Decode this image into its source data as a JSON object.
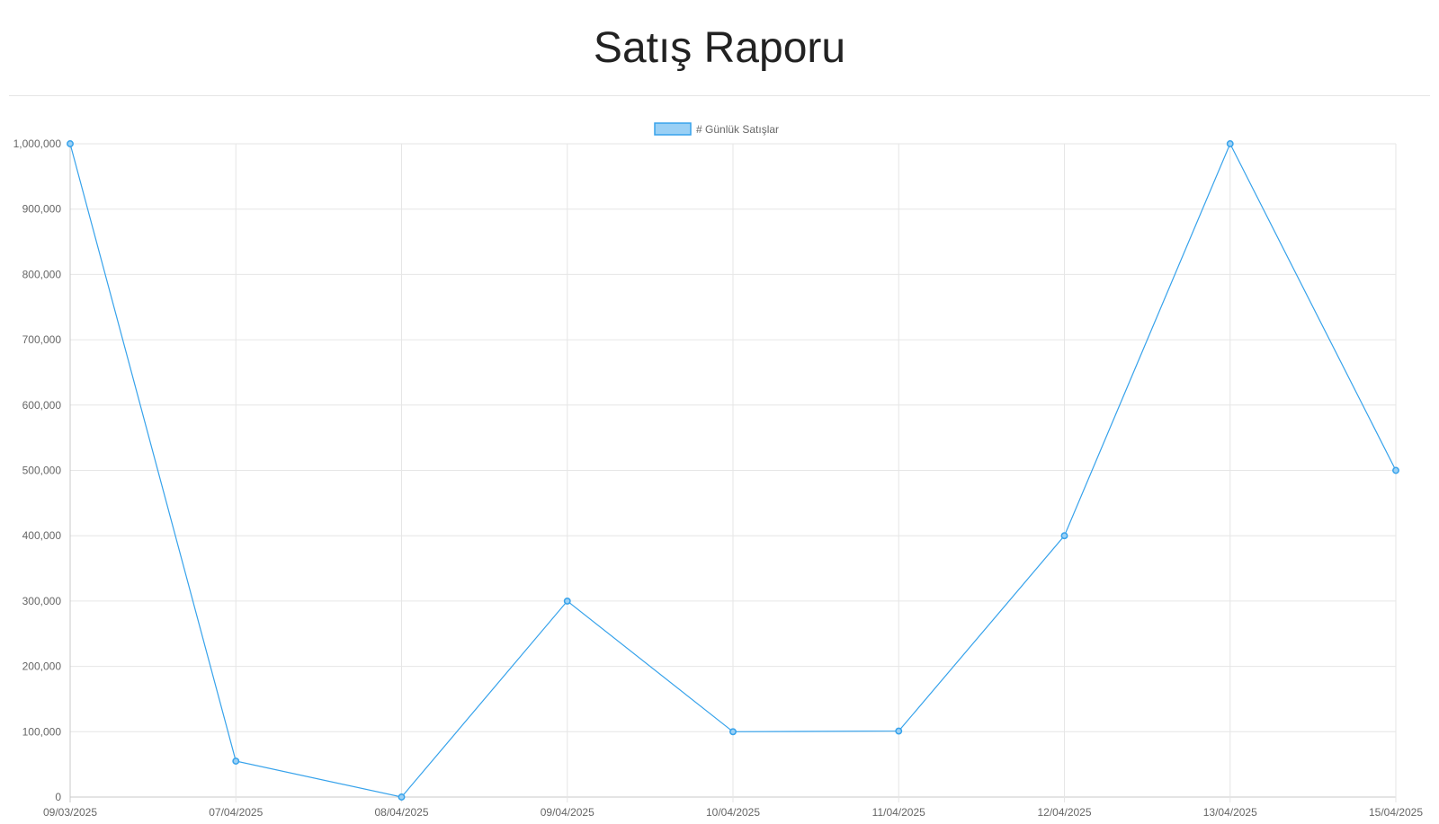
{
  "page": {
    "title": "Satış Raporu"
  },
  "chart_data": {
    "type": "line",
    "categories": [
      "09/03/2025",
      "07/04/2025",
      "08/04/2025",
      "09/04/2025",
      "10/04/2025",
      "11/04/2025",
      "12/04/2025",
      "13/04/2025",
      "15/04/2025"
    ],
    "series": [
      {
        "name": "# Günlük Satışlar",
        "values": [
          1000000,
          55000,
          0,
          300000,
          100000,
          101000,
          400000,
          1000000,
          500000
        ],
        "color": "#36a2eb",
        "fill": "#9ad0f5"
      }
    ],
    "ylim": [
      0,
      1000000
    ],
    "yticks": [
      0,
      100000,
      200000,
      300000,
      400000,
      500000,
      600000,
      700000,
      800000,
      900000,
      1000000
    ],
    "ytick_labels": [
      "0",
      "100,000",
      "200,000",
      "300,000",
      "400,000",
      "500,000",
      "600,000",
      "700,000",
      "800,000",
      "900,000",
      "1,000,000"
    ],
    "grid": true,
    "legend_position": "top-center"
  }
}
